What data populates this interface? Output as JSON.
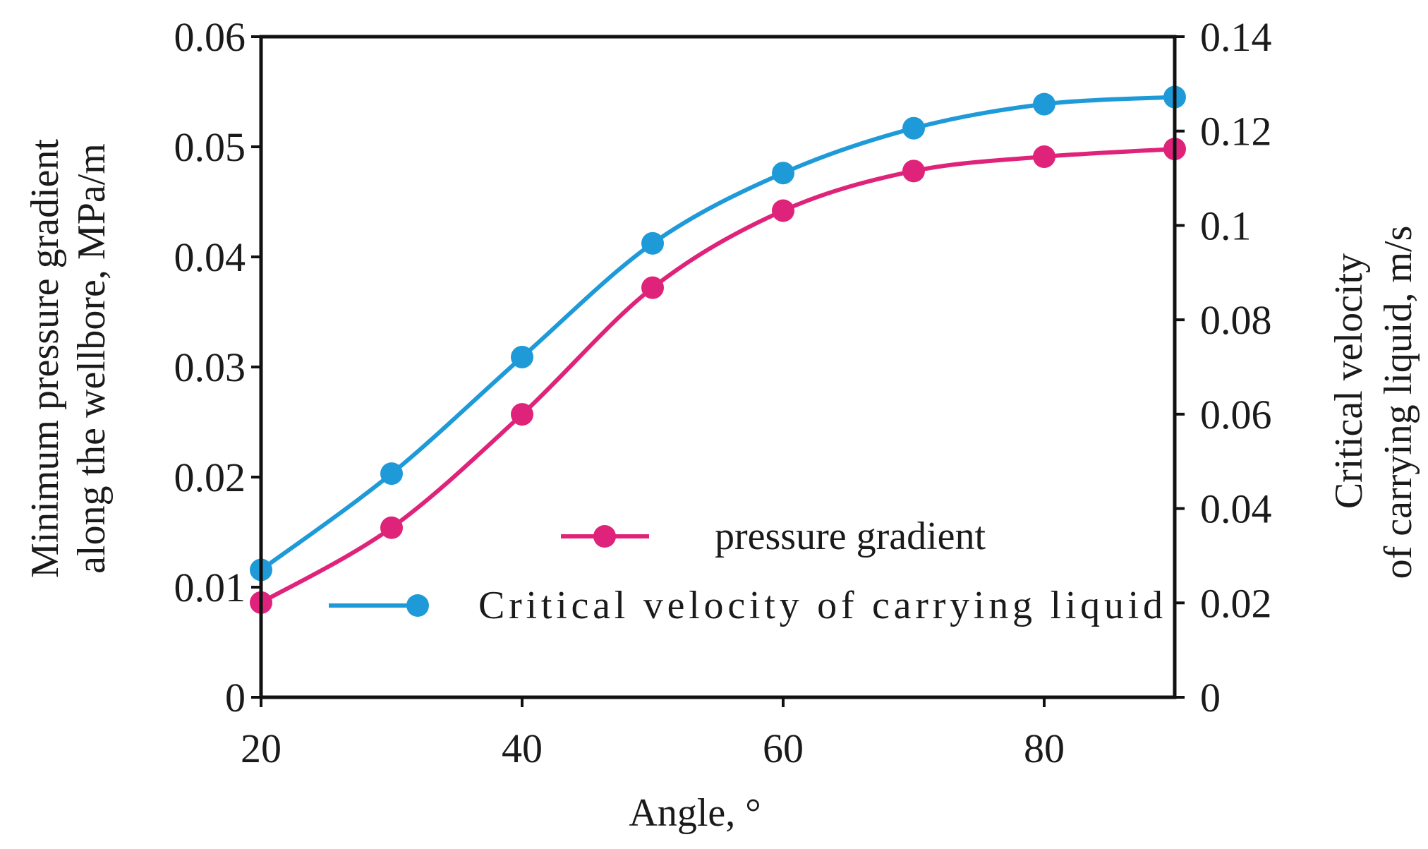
{
  "chart_data": {
    "type": "line",
    "xlabel": "Angle,  °",
    "ylabel_left": [
      "Minimum pressure gradient",
      "along the wellbore,  MPa/m"
    ],
    "ylabel_right": [
      "Critical  velocity",
      "of carrying liquid,  m/s"
    ],
    "xlim": [
      20,
      90
    ],
    "ylim_left": [
      0,
      0.06
    ],
    "ylim_right": [
      0,
      0.14
    ],
    "x_ticks": [
      20,
      40,
      60,
      80
    ],
    "x_tick_labels": [
      "20",
      "40",
      "60",
      "80"
    ],
    "y_left_ticks": [
      0,
      0.01,
      0.02,
      0.03,
      0.04,
      0.05,
      0.06
    ],
    "y_left_tick_labels": [
      "0",
      "0.01",
      "0.02",
      "0.03",
      "0.04",
      "0.05",
      "0.06"
    ],
    "y_right_ticks": [
      0,
      0.02,
      0.04,
      0.06,
      0.08,
      0.1,
      0.12,
      0.14
    ],
    "y_right_tick_labels": [
      "0",
      "0.02",
      "0.04",
      "0.06",
      "0.08",
      "0.1",
      "0.12",
      "0.14"
    ],
    "legend_position": "center-right",
    "series": [
      {
        "name": "pressure gradient",
        "axis": "left",
        "color": "#e0237a",
        "x": [
          20,
          30,
          40,
          50,
          60,
          70,
          80,
          90
        ],
        "values": [
          0.0086,
          0.0154,
          0.0257,
          0.0372,
          0.0442,
          0.0478,
          0.0491,
          0.0498
        ]
      },
      {
        "name": "Critical  velocity of  carrying liquid",
        "axis": "right",
        "color": "#1f9ad8",
        "x": [
          20,
          30,
          40,
          50,
          60,
          70,
          80,
          90
        ],
        "values": [
          0.027,
          0.0474,
          0.0721,
          0.0962,
          0.1111,
          0.1206,
          0.1257,
          0.1272
        ]
      }
    ]
  }
}
